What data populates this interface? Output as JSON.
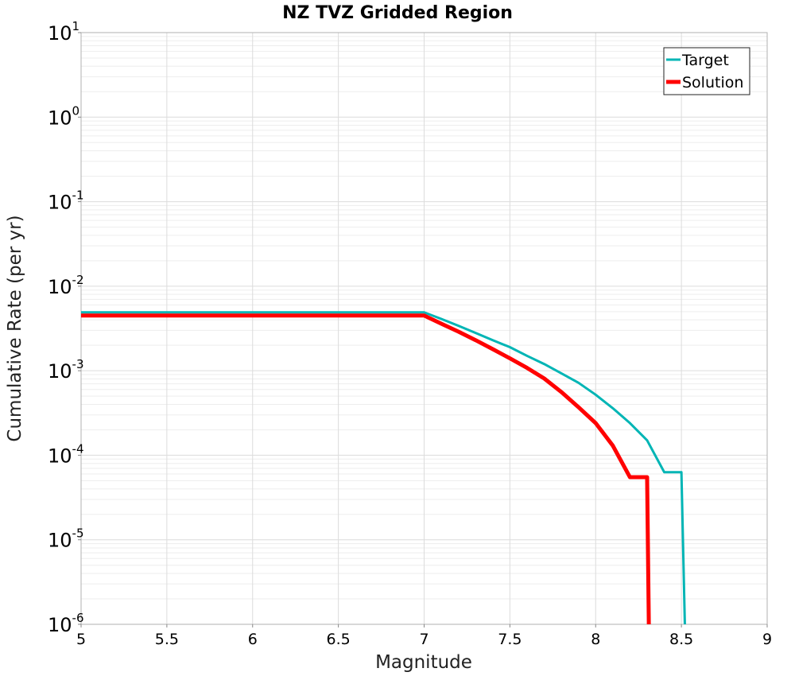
{
  "chart_data": {
    "type": "line",
    "title": "NZ TVZ Gridded Region",
    "xlabel": "Magnitude",
    "ylabel": "Cumulative Rate (per yr)",
    "xlim": [
      5,
      9
    ],
    "ylim": [
      1e-06,
      10
    ],
    "yscale": "log",
    "grid": true,
    "legend_position": "top-right",
    "x_ticks": [
      "5",
      "5.5",
      "6",
      "6.5",
      "7",
      "7.5",
      "8",
      "8.5",
      "9"
    ],
    "y_ticks": [
      {
        "base": "10",
        "exp": "1"
      },
      {
        "base": "10",
        "exp": "0"
      },
      {
        "base": "10",
        "exp": "-1"
      },
      {
        "base": "10",
        "exp": "-2"
      },
      {
        "base": "10",
        "exp": "-3"
      },
      {
        "base": "10",
        "exp": "-4"
      },
      {
        "base": "10",
        "exp": "-5"
      },
      {
        "base": "10",
        "exp": "-6"
      }
    ],
    "series": [
      {
        "name": "Target",
        "color": "#00b5b5",
        "x": [
          5.0,
          7.0,
          7.1,
          7.2,
          7.3,
          7.4,
          7.5,
          7.6,
          7.7,
          7.8,
          7.9,
          8.0,
          8.1,
          8.2,
          8.3,
          8.4,
          8.5,
          8.52
        ],
        "y": [
          0.0049,
          0.0049,
          0.0041,
          0.0034,
          0.0028,
          0.0023,
          0.0019,
          0.0015,
          0.0012,
          0.00093,
          0.00072,
          0.00052,
          0.00036,
          0.00024,
          0.00015,
          6.3e-05,
          6.3e-05,
          1e-06
        ]
      },
      {
        "name": "Solution",
        "color": "#ff0000",
        "x": [
          5.0,
          7.0,
          7.1,
          7.2,
          7.3,
          7.4,
          7.5,
          7.6,
          7.7,
          7.8,
          7.9,
          8.0,
          8.1,
          8.2,
          8.3,
          8.31
        ],
        "y": [
          0.0045,
          0.0045,
          0.0036,
          0.0029,
          0.0023,
          0.0018,
          0.0014,
          0.00108,
          0.00081,
          0.00056,
          0.00037,
          0.00024,
          0.00013,
          5.5e-05,
          5.5e-05,
          1e-06
        ]
      }
    ]
  }
}
